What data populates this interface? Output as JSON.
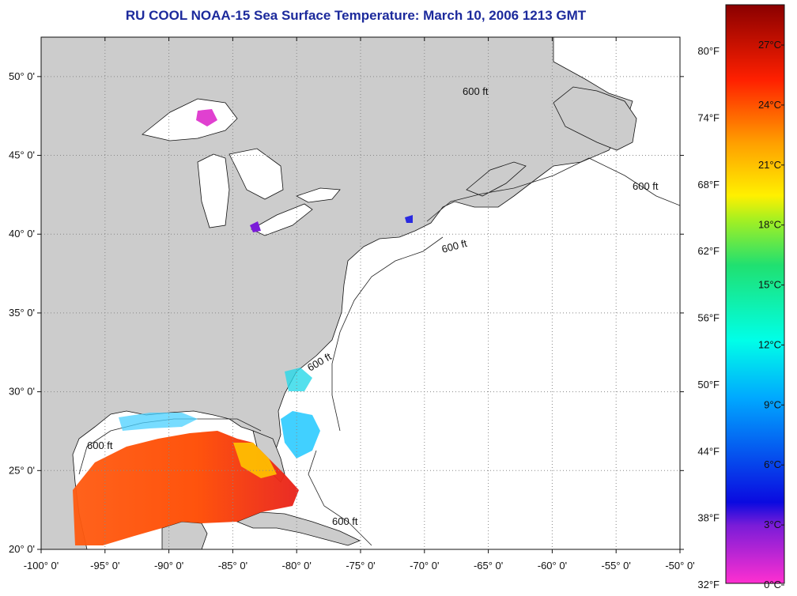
{
  "title": "RU COOL  NOAA-15  Sea Surface Temperature:  March 10, 2006 1213 GMT",
  "map": {
    "lon_range": [
      -100,
      -50
    ],
    "lat_range": [
      20,
      52.5
    ],
    "lon_ticks": [
      "-100° 0'",
      "-95° 0'",
      "-90° 0'",
      "-85° 0'",
      "-80° 0'",
      "-75° 0'",
      "-70° 0'",
      "-65° 0'",
      "-60° 0'",
      "-55° 0'",
      "-50° 0'"
    ],
    "lat_ticks": [
      "20° 0'",
      "25° 0'",
      "30° 0'",
      "35° 0'",
      "40° 0'",
      "45° 0'",
      "50° 0'"
    ],
    "contour_label": "600 ft",
    "colors": {
      "land": "#cccccc",
      "ocean": "#ffffff",
      "grid": "#888888"
    }
  },
  "colorbar": {
    "fahrenheit": [
      "80°F",
      "74°F",
      "68°F",
      "62°F",
      "56°F",
      "50°F",
      "44°F",
      "38°F",
      "32°F"
    ],
    "celsius": [
      "27°C",
      "24°C",
      "21°C",
      "18°C",
      "15°C",
      "12°C",
      "9°C",
      "6°C",
      "3°C",
      "0°C"
    ]
  }
}
